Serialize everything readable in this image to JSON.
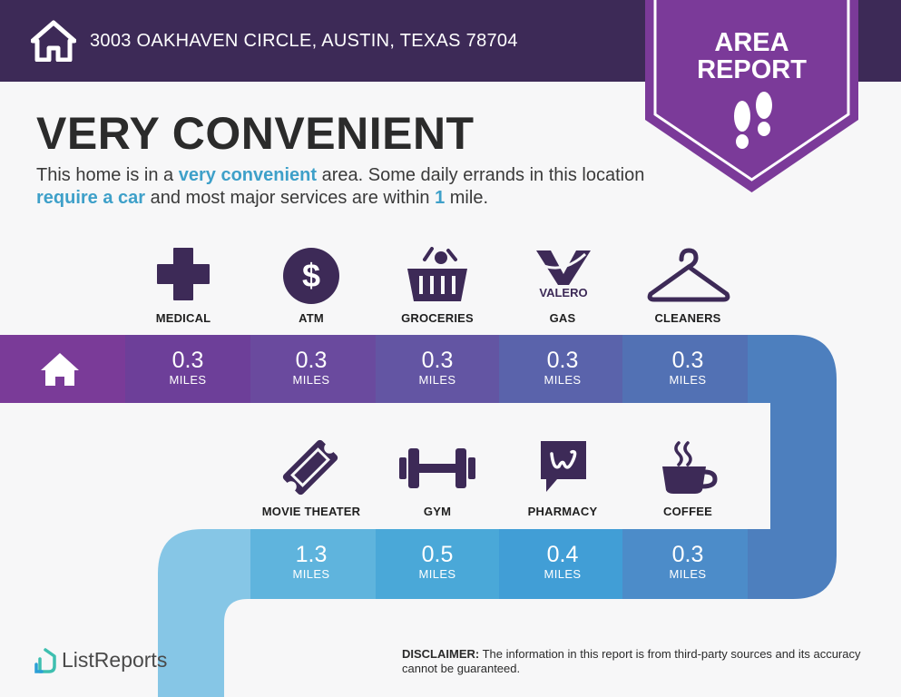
{
  "header": {
    "address": "3003 OAKHAVEN CIRCLE, AUSTIN, TEXAS 78704",
    "badge_line1": "AREA",
    "badge_line2": "REPORT"
  },
  "headline": "VERY CONVENIENT",
  "intro": {
    "part1": "This home is in a ",
    "highlight1": "very convenient",
    "part2": " area. Some daily errands in this location ",
    "highlight2": "require a car",
    "part3": " and most major services are within ",
    "highlight3": "1",
    "part4": " mile."
  },
  "colors": {
    "header": "#3d2a57",
    "badge": "#7b3a99",
    "accent": "#3ea0c9",
    "icon": "#3d2a57"
  },
  "row1": [
    {
      "label": "MEDICAL",
      "icon": "medical-cross-icon",
      "distance": "0.3",
      "unit": "MILES"
    },
    {
      "label": "ATM",
      "icon": "dollar-coin-icon",
      "distance": "0.3",
      "unit": "MILES"
    },
    {
      "label": "GROCERIES",
      "icon": "grocery-basket-icon",
      "distance": "0.3",
      "unit": "MILES"
    },
    {
      "label": "GAS",
      "icon": "valero-logo-icon",
      "logo_text": "VALERO",
      "distance": "0.3",
      "unit": "MILES"
    },
    {
      "label": "CLEANERS",
      "icon": "hanger-icon",
      "distance": "0.3",
      "unit": "MILES"
    }
  ],
  "row2": [
    {
      "label": "MOVIE THEATER",
      "icon": "ticket-icon",
      "distance": "1.3",
      "unit": "MILES"
    },
    {
      "label": "GYM",
      "icon": "dumbbell-icon",
      "distance": "0.5",
      "unit": "MILES"
    },
    {
      "label": "PHARMACY",
      "icon": "walgreens-logo-icon",
      "distance": "0.4",
      "unit": "MILES"
    },
    {
      "label": "COFFEE",
      "icon": "coffee-cup-icon",
      "distance": "0.3",
      "unit": "MILES"
    }
  ],
  "footer": {
    "brand": "ListReports",
    "disclaimer_label": "DISCLAIMER:",
    "disclaimer_text": " The information in this report is from third-party sources and its accuracy cannot be guaranteed."
  }
}
